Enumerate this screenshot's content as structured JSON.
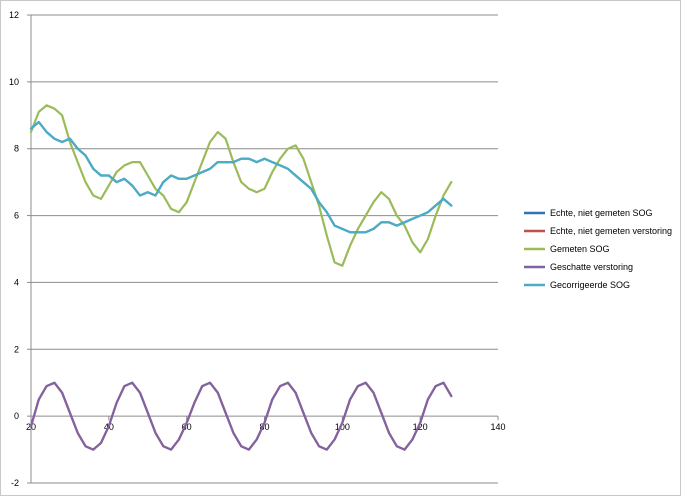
{
  "chart_data": {
    "type": "line",
    "title": "",
    "xlabel": "",
    "ylabel": "",
    "xlim": [
      20,
      140
    ],
    "ylim": [
      -2,
      12
    ],
    "x_ticks": [
      20,
      40,
      60,
      80,
      100,
      120,
      140
    ],
    "y_ticks": [
      -2,
      0,
      2,
      4,
      6,
      8,
      10,
      12
    ],
    "grid": "horizontal",
    "legend_position": "right",
    "series": [
      {
        "name": "Echte, niet gemeten SOG",
        "color": "#2e75b6",
        "x": [
          20,
          22,
          24,
          26,
          28,
          30,
          32,
          34,
          36,
          38,
          40,
          42,
          44,
          46,
          48,
          50,
          52,
          54,
          56,
          58,
          60,
          62,
          64,
          66,
          68,
          70,
          72,
          74,
          76,
          78,
          80,
          82,
          84,
          86,
          88,
          90,
          92,
          94,
          96,
          98,
          100,
          102,
          104,
          106,
          108,
          110,
          112,
          114,
          116,
          118,
          120,
          122,
          124,
          126,
          128
        ],
        "y": [
          8.6,
          8.8,
          8.5,
          8.3,
          8.2,
          8.3,
          8.0,
          7.8,
          7.4,
          7.2,
          7.2,
          7.0,
          7.1,
          6.9,
          6.6,
          6.7,
          6.6,
          7.0,
          7.2,
          7.1,
          7.1,
          7.2,
          7.3,
          7.4,
          7.6,
          7.6,
          7.6,
          7.7,
          7.7,
          7.6,
          7.7,
          7.6,
          7.5,
          7.4,
          7.2,
          7.0,
          6.8,
          6.4,
          6.1,
          5.7,
          5.6,
          5.5,
          5.5,
          5.5,
          5.6,
          5.8,
          5.8,
          5.7,
          5.8,
          5.9,
          6.0,
          6.1,
          6.3,
          6.5,
          6.3
        ]
      },
      {
        "name": "Echte, niet gemeten verstoring",
        "color": "#c0504d",
        "x": [
          20,
          22,
          24,
          26,
          28,
          30,
          32,
          34,
          36,
          38,
          40,
          42,
          44,
          46,
          48,
          50,
          52,
          54,
          56,
          58,
          60,
          62,
          64,
          66,
          68,
          70,
          72,
          74,
          76,
          78,
          80,
          82,
          84,
          86,
          88,
          90,
          92,
          94,
          96,
          98,
          100,
          102,
          104,
          106,
          108,
          110,
          112,
          114,
          116,
          118,
          120,
          122,
          124,
          126,
          128
        ],
        "y": [
          -0.3,
          0.5,
          0.9,
          1.0,
          0.7,
          0.1,
          -0.5,
          -0.9,
          -1.0,
          -0.8,
          -0.3,
          0.4,
          0.9,
          1.0,
          0.7,
          0.1,
          -0.5,
          -0.9,
          -1.0,
          -0.7,
          -0.2,
          0.4,
          0.9,
          1.0,
          0.7,
          0.1,
          -0.5,
          -0.9,
          -1.0,
          -0.7,
          -0.2,
          0.5,
          0.9,
          1.0,
          0.7,
          0.1,
          -0.5,
          -0.9,
          -1.0,
          -0.7,
          -0.2,
          0.5,
          0.9,
          1.0,
          0.7,
          0.1,
          -0.5,
          -0.9,
          -1.0,
          -0.7,
          -0.2,
          0.5,
          0.9,
          1.0,
          0.6
        ]
      },
      {
        "name": "Gemeten SOG",
        "color": "#9bbb59",
        "x": [
          20,
          22,
          24,
          26,
          28,
          30,
          32,
          34,
          36,
          38,
          40,
          42,
          44,
          46,
          48,
          50,
          52,
          54,
          56,
          58,
          60,
          62,
          64,
          66,
          68,
          70,
          72,
          74,
          76,
          78,
          80,
          82,
          84,
          86,
          88,
          90,
          92,
          94,
          96,
          98,
          100,
          102,
          104,
          106,
          108,
          110,
          112,
          114,
          116,
          118,
          120,
          122,
          124,
          126,
          128
        ],
        "y": [
          8.5,
          9.1,
          9.3,
          9.2,
          9.0,
          8.2,
          7.6,
          7.0,
          6.6,
          6.5,
          6.9,
          7.3,
          7.5,
          7.6,
          7.6,
          7.2,
          6.8,
          6.6,
          6.2,
          6.1,
          6.4,
          7.0,
          7.6,
          8.2,
          8.5,
          8.3,
          7.6,
          7.0,
          6.8,
          6.7,
          6.8,
          7.3,
          7.7,
          8.0,
          8.1,
          7.7,
          7.0,
          6.3,
          5.4,
          4.6,
          4.5,
          5.1,
          5.6,
          6.0,
          6.4,
          6.7,
          6.5,
          6.0,
          5.7,
          5.2,
          4.9,
          5.3,
          6.0,
          6.6,
          7.0
        ]
      },
      {
        "name": "Geschatte verstoring",
        "color": "#8064a2",
        "x": [
          20,
          22,
          24,
          26,
          28,
          30,
          32,
          34,
          36,
          38,
          40,
          42,
          44,
          46,
          48,
          50,
          52,
          54,
          56,
          58,
          60,
          62,
          64,
          66,
          68,
          70,
          72,
          74,
          76,
          78,
          80,
          82,
          84,
          86,
          88,
          90,
          92,
          94,
          96,
          98,
          100,
          102,
          104,
          106,
          108,
          110,
          112,
          114,
          116,
          118,
          120,
          122,
          124,
          126,
          128
        ],
        "y": [
          -0.3,
          0.5,
          0.9,
          1.0,
          0.7,
          0.1,
          -0.5,
          -0.9,
          -1.0,
          -0.8,
          -0.3,
          0.4,
          0.9,
          1.0,
          0.7,
          0.1,
          -0.5,
          -0.9,
          -1.0,
          -0.7,
          -0.2,
          0.4,
          0.9,
          1.0,
          0.7,
          0.1,
          -0.5,
          -0.9,
          -1.0,
          -0.7,
          -0.2,
          0.5,
          0.9,
          1.0,
          0.7,
          0.1,
          -0.5,
          -0.9,
          -1.0,
          -0.7,
          -0.2,
          0.5,
          0.9,
          1.0,
          0.7,
          0.1,
          -0.5,
          -0.9,
          -1.0,
          -0.7,
          -0.2,
          0.5,
          0.9,
          1.0,
          0.6
        ]
      },
      {
        "name": "Gecorrigeerde SOG",
        "color": "#4bacc6",
        "x": [
          20,
          22,
          24,
          26,
          28,
          30,
          32,
          34,
          36,
          38,
          40,
          42,
          44,
          46,
          48,
          50,
          52,
          54,
          56,
          58,
          60,
          62,
          64,
          66,
          68,
          70,
          72,
          74,
          76,
          78,
          80,
          82,
          84,
          86,
          88,
          90,
          92,
          94,
          96,
          98,
          100,
          102,
          104,
          106,
          108,
          110,
          112,
          114,
          116,
          118,
          120,
          122,
          124,
          126,
          128
        ],
        "y": [
          8.6,
          8.8,
          8.5,
          8.3,
          8.2,
          8.3,
          8.0,
          7.8,
          7.4,
          7.2,
          7.2,
          7.0,
          7.1,
          6.9,
          6.6,
          6.7,
          6.6,
          7.0,
          7.2,
          7.1,
          7.1,
          7.2,
          7.3,
          7.4,
          7.6,
          7.6,
          7.6,
          7.7,
          7.7,
          7.6,
          7.7,
          7.6,
          7.5,
          7.4,
          7.2,
          7.0,
          6.8,
          6.4,
          6.1,
          5.7,
          5.6,
          5.5,
          5.5,
          5.5,
          5.6,
          5.8,
          5.8,
          5.7,
          5.8,
          5.9,
          6.0,
          6.1,
          6.3,
          6.5,
          6.3
        ]
      }
    ]
  }
}
